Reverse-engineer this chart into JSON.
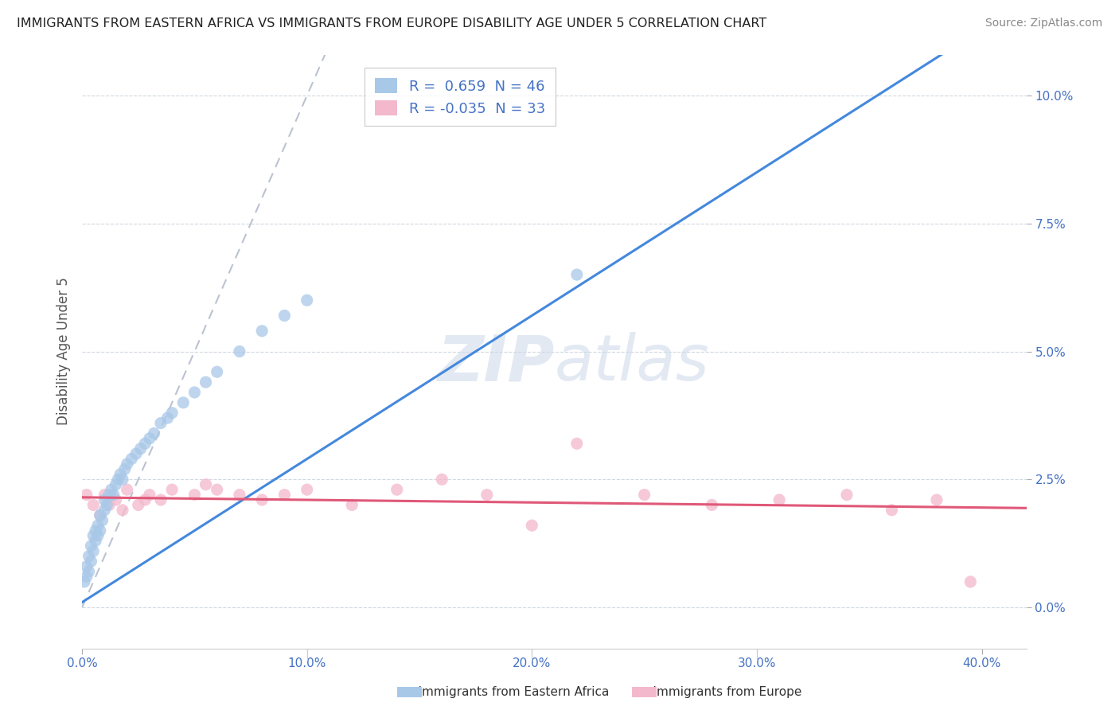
{
  "title": "IMMIGRANTS FROM EASTERN AFRICA VS IMMIGRANTS FROM EUROPE DISABILITY AGE UNDER 5 CORRELATION CHART",
  "source": "Source: ZipAtlas.com",
  "ylabel": "Disability Age Under 5",
  "blue_R": 0.659,
  "blue_N": 46,
  "pink_R": -0.035,
  "pink_N": 33,
  "blue_color": "#a8c8e8",
  "pink_color": "#f4b8cc",
  "blue_line_color": "#4488dd",
  "pink_line_color": "#e05878",
  "ref_line_color": "#b0b8c8",
  "legend_label_blue": "Immigrants from Eastern Africa",
  "legend_label_pink": "Immigrants from Europe",
  "background_color": "#ffffff",
  "grid_color": "#d0d8e0",
  "title_color": "#222222",
  "source_color": "#888888",
  "tick_color": "#4472c4",
  "ylabel_color": "#555555",
  "watermark_color": "#ccd8e8",
  "xlim": [
    0.0,
    0.42
  ],
  "ylim": [
    -0.008,
    0.108
  ],
  "xtick_vals": [
    0.0,
    0.1,
    0.2,
    0.3,
    0.4
  ],
  "ytick_vals": [
    0.0,
    0.025,
    0.05,
    0.075,
    0.1
  ],
  "blue_x": [
    0.001,
    0.002,
    0.002,
    0.003,
    0.003,
    0.004,
    0.004,
    0.005,
    0.005,
    0.006,
    0.006,
    0.007,
    0.007,
    0.008,
    0.008,
    0.009,
    0.01,
    0.01,
    0.011,
    0.012,
    0.013,
    0.014,
    0.015,
    0.016,
    0.017,
    0.018,
    0.019,
    0.02,
    0.022,
    0.024,
    0.026,
    0.028,
    0.03,
    0.032,
    0.035,
    0.038,
    0.04,
    0.045,
    0.05,
    0.055,
    0.06,
    0.07,
    0.08,
    0.09,
    0.1,
    0.22
  ],
  "blue_y": [
    0.005,
    0.006,
    0.008,
    0.007,
    0.01,
    0.009,
    0.012,
    0.011,
    0.014,
    0.013,
    0.015,
    0.014,
    0.016,
    0.015,
    0.018,
    0.017,
    0.019,
    0.021,
    0.02,
    0.022,
    0.023,
    0.022,
    0.024,
    0.025,
    0.026,
    0.025,
    0.027,
    0.028,
    0.029,
    0.03,
    0.031,
    0.032,
    0.033,
    0.034,
    0.036,
    0.037,
    0.038,
    0.04,
    0.042,
    0.044,
    0.046,
    0.05,
    0.054,
    0.057,
    0.06,
    0.065
  ],
  "pink_x": [
    0.002,
    0.005,
    0.008,
    0.01,
    0.012,
    0.015,
    0.018,
    0.02,
    0.025,
    0.028,
    0.03,
    0.035,
    0.04,
    0.05,
    0.055,
    0.06,
    0.07,
    0.08,
    0.09,
    0.1,
    0.12,
    0.14,
    0.16,
    0.18,
    0.2,
    0.22,
    0.25,
    0.28,
    0.31,
    0.34,
    0.36,
    0.38,
    0.395
  ],
  "pink_y": [
    0.022,
    0.02,
    0.018,
    0.022,
    0.02,
    0.021,
    0.019,
    0.023,
    0.02,
    0.021,
    0.022,
    0.021,
    0.023,
    0.022,
    0.024,
    0.023,
    0.022,
    0.021,
    0.022,
    0.023,
    0.02,
    0.023,
    0.025,
    0.022,
    0.016,
    0.032,
    0.022,
    0.02,
    0.021,
    0.022,
    0.019,
    0.021,
    0.005
  ],
  "blue_reg_slope": 0.28,
  "blue_reg_intercept": 0.001,
  "pink_reg_slope": -0.005,
  "pink_reg_intercept": 0.0215
}
